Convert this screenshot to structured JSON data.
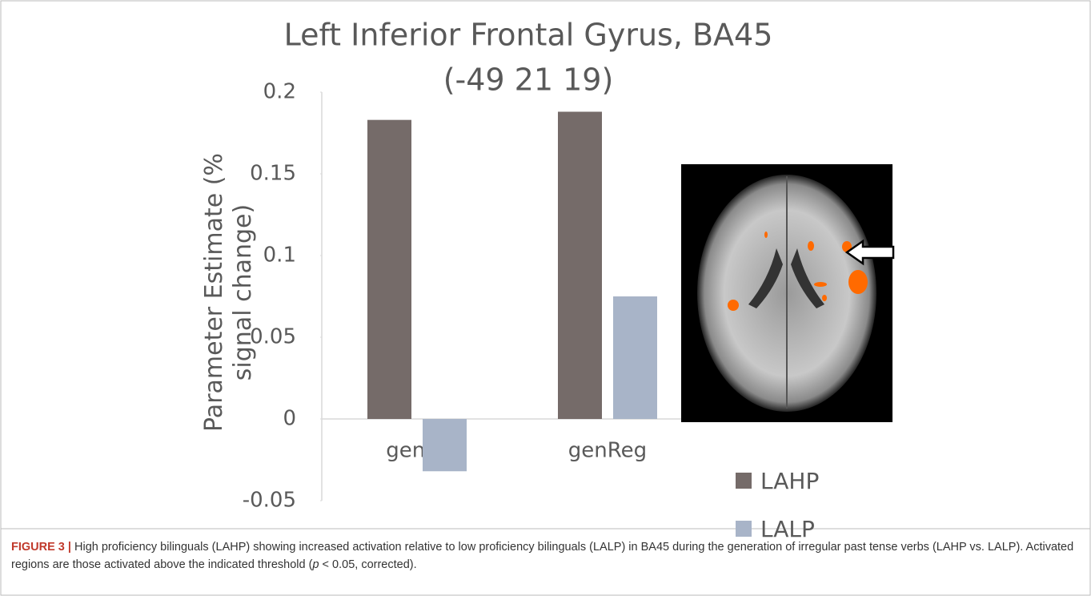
{
  "chart_data": {
    "type": "bar",
    "title": "Left Inferior Frontal Gyrus, BA45",
    "subtitle": "(-49 21 19)",
    "y_label": "Parameter Estimate (% signal change)",
    "categories": [
      "genIrr",
      "genReg"
    ],
    "series": [
      {
        "name": "LAHP",
        "color": "#756b69",
        "values": [
          0.183,
          0.188
        ]
      },
      {
        "name": "LALP",
        "color": "#a8b4c8",
        "values": [
          -0.032,
          0.075
        ]
      }
    ],
    "ylim": [
      -0.05,
      0.2
    ],
    "yticks": [
      -0.05,
      0,
      0.05,
      0.1,
      0.15,
      0.2
    ]
  },
  "caption": {
    "label": "FIGURE 3 |",
    "text": [
      "High proficiency bilinguals (LAHP) showing increased activation relative to low proficiency bilinguals (LALP) in BA45 during the generation of irregular past tense verbs (LAHP vs. LALP). Activated regions are those activated above the indicated threshold (",
      "p",
      " < 0.05, corrected)."
    ]
  }
}
